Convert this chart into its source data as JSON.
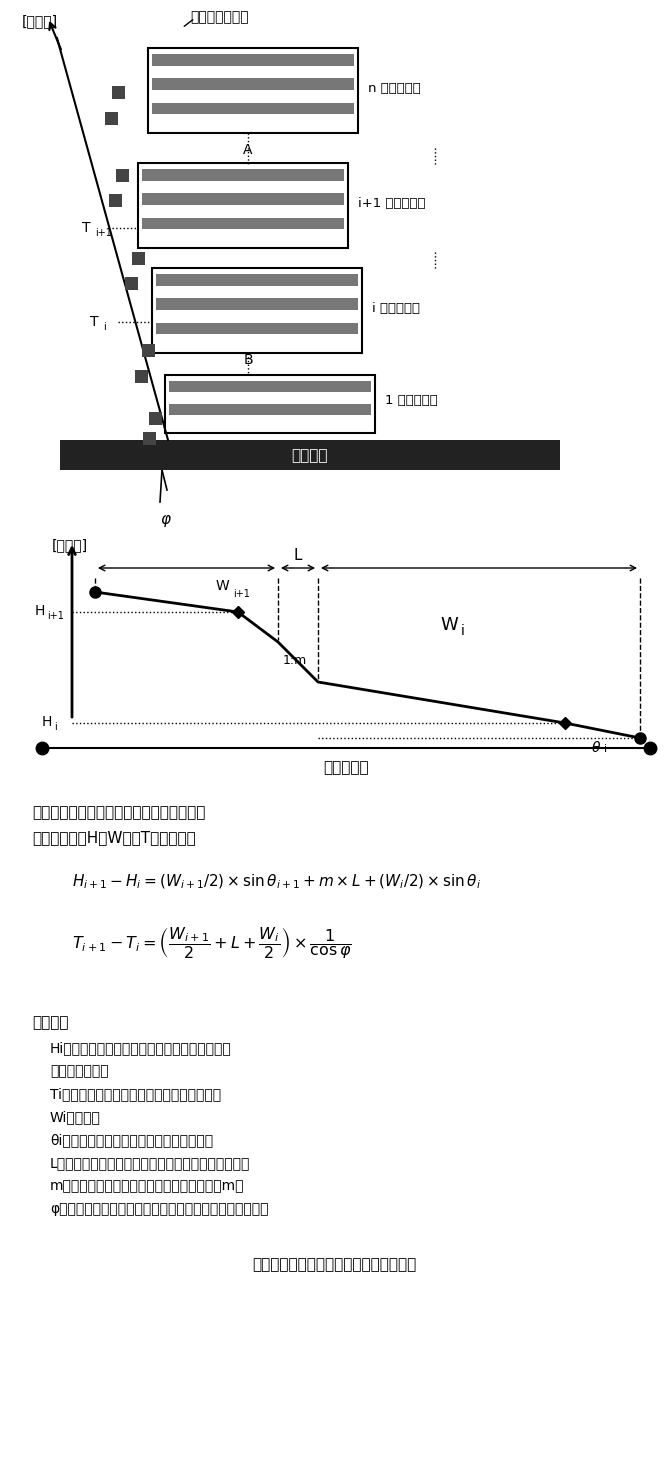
{
  "bg_color": "#ffffff",
  "line_color": "#000000",
  "field_fill": "#777777",
  "road_fill": "#222222",
  "plan_label": "[平面図]",
  "rail_label": "畝間移動レール",
  "road_label": "耕作道路",
  "section_label": "[縦断図]",
  "ab_label": "Ａ－Ｂ断面",
  "field_labels": [
    "n 番目の圃場",
    "i+1 番目の圃場",
    "i 番目の圃場",
    "1 番目の圃場"
  ],
  "point_A": "A",
  "point_B": "B",
  "point_phi": "φ",
  "koko_text": "ここで、",
  "intro_line1": "隣接圃場の相対位置と標高差には下式の関",
  "intro_line2": "係が成立し、HとWからTが求まる。",
  "def_lines": [
    "Hi：圃場標高（畝間移動レールとの接続点での",
    "　　　標高値）",
    "Ti：畝間移動レール起点から圃場までの距離",
    "Wi：短辺長",
    "θi：圃場勾配（現況地形の勾配から導出）",
    "L：　圃場間法面幅（圃場間標高差から一意に決定）",
    "m：　法面勾配（法底面長さ：法面高＝１：m）",
    "φ：　畝間移動レールと圃場内移動レールの交差角の補角"
  ],
  "caption": "図１　区画規模・配置決定定式化の概念"
}
